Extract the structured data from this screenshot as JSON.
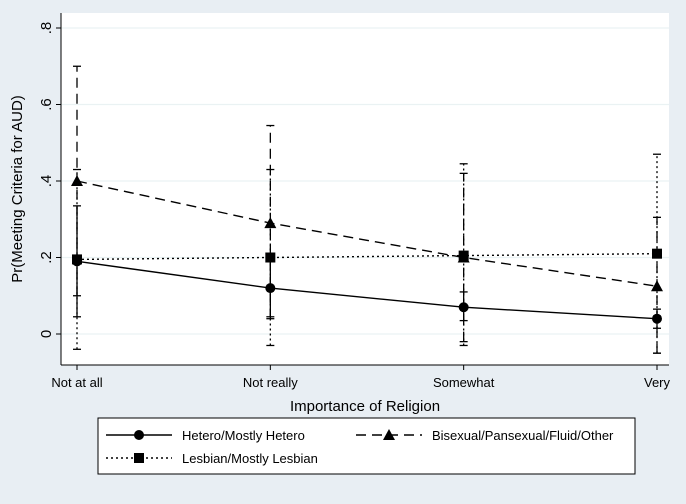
{
  "chart_data": {
    "type": "line",
    "xlabel": "Importance of Religion",
    "ylabel": "Pr(Meeting Criteria for AUD)",
    "categories": [
      "Not at all",
      "Not really",
      "Somewhat",
      "Very"
    ],
    "ylim": [
      -0.05,
      0.82
    ],
    "yticks": [
      0,
      0.2,
      0.4,
      0.6,
      0.8
    ],
    "ytick_labels": [
      "0",
      ".2",
      ".4",
      ".6",
      ".8"
    ],
    "grid": true,
    "legend_position": "bottom",
    "series": [
      {
        "name": "Hetero/Mostly Hetero",
        "marker": "circle",
        "line_style": "solid",
        "values": [
          0.19,
          0.12,
          0.07,
          0.04
        ],
        "ci_low": [
          0.045,
          0.045,
          0.035,
          0.015
        ],
        "ci_high": [
          0.335,
          0.19,
          0.11,
          0.065
        ]
      },
      {
        "name": "Bisexual/Pansexual/Fluid/Other",
        "marker": "triangle",
        "line_style": "dashed",
        "values": [
          0.4,
          0.29,
          0.2,
          0.125
        ],
        "ci_low": [
          0.1,
          0.04,
          -0.02,
          -0.05
        ],
        "ci_high": [
          0.7,
          0.545,
          0.42,
          0.305
        ]
      },
      {
        "name": "Lesbian/Mostly Lesbian",
        "marker": "square",
        "line_style": "dotted",
        "values": [
          0.195,
          0.2,
          0.205,
          0.21
        ],
        "ci_low": [
          -0.04,
          -0.03,
          -0.03,
          -0.05
        ],
        "ci_high": [
          0.43,
          0.43,
          0.445,
          0.47
        ]
      }
    ]
  }
}
